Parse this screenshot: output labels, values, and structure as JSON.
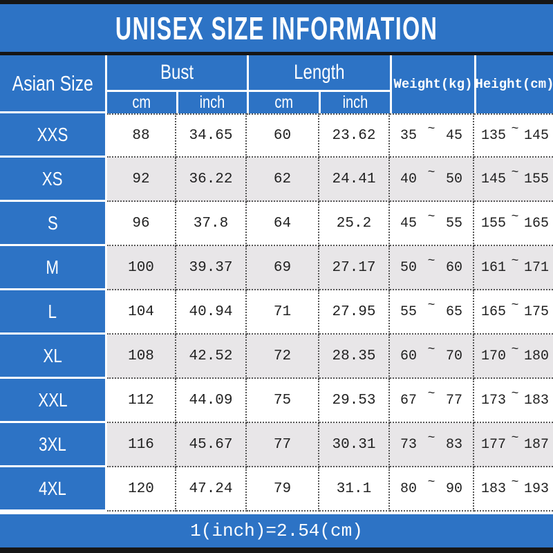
{
  "title": "UNISEX SIZE INFORMATION",
  "footer_note": "1(inch)=2.54(cm)",
  "colors": {
    "accent_blue": "#2D73C5",
    "alt_row_gray": "#E8E6E8",
    "bar_black": "#161616",
    "data_text": "#222222"
  },
  "table": {
    "tilde": "~",
    "header": {
      "size_column": "Asian Size",
      "bust": "Bust",
      "length": "Length",
      "weight": "Weight(kg)",
      "height": "Height(cm)",
      "sub": [
        "cm",
        "inch",
        "cm",
        "inch"
      ]
    },
    "rows": [
      {
        "size": "XXS",
        "bust_cm": "88",
        "bust_in": "34.65",
        "len_cm": "60",
        "len_in": "23.62",
        "w_min": "35",
        "w_max": "45",
        "h_min": "135",
        "h_max": "145"
      },
      {
        "size": "XS",
        "bust_cm": "92",
        "bust_in": "36.22",
        "len_cm": "62",
        "len_in": "24.41",
        "w_min": "40",
        "w_max": "50",
        "h_min": "145",
        "h_max": "155"
      },
      {
        "size": "S",
        "bust_cm": "96",
        "bust_in": "37.8",
        "len_cm": "64",
        "len_in": "25.2",
        "w_min": "45",
        "w_max": "55",
        "h_min": "155",
        "h_max": "165"
      },
      {
        "size": "M",
        "bust_cm": "100",
        "bust_in": "39.37",
        "len_cm": "69",
        "len_in": "27.17",
        "w_min": "50",
        "w_max": "60",
        "h_min": "161",
        "h_max": "171"
      },
      {
        "size": "L",
        "bust_cm": "104",
        "bust_in": "40.94",
        "len_cm": "71",
        "len_in": "27.95",
        "w_min": "55",
        "w_max": "65",
        "h_min": "165",
        "h_max": "175"
      },
      {
        "size": "XL",
        "bust_cm": "108",
        "bust_in": "42.52",
        "len_cm": "72",
        "len_in": "28.35",
        "w_min": "60",
        "w_max": "70",
        "h_min": "170",
        "h_max": "180"
      },
      {
        "size": "XXL",
        "bust_cm": "112",
        "bust_in": "44.09",
        "len_cm": "75",
        "len_in": "29.53",
        "w_min": "67",
        "w_max": "77",
        "h_min": "173",
        "h_max": "183"
      },
      {
        "size": "3XL",
        "bust_cm": "116",
        "bust_in": "45.67",
        "len_cm": "77",
        "len_in": "30.31",
        "w_min": "73",
        "w_max": "83",
        "h_min": "177",
        "h_max": "187"
      },
      {
        "size": "4XL",
        "bust_cm": "120",
        "bust_in": "47.24",
        "len_cm": "79",
        "len_in": "31.1",
        "w_min": "80",
        "w_max": "90",
        "h_min": "183",
        "h_max": "193"
      }
    ]
  },
  "chart_data": {
    "type": "table",
    "title": "UNISEX SIZE INFORMATION",
    "columns": [
      "Asian Size",
      "Bust (cm)",
      "Bust (inch)",
      "Length (cm)",
      "Length (inch)",
      "Weight (kg)",
      "Height (cm)"
    ],
    "rows": [
      [
        "XXS",
        88,
        34.65,
        60,
        23.62,
        "35~45",
        "135~145"
      ],
      [
        "XS",
        92,
        36.22,
        62,
        24.41,
        "40~50",
        "145~155"
      ],
      [
        "S",
        96,
        37.8,
        64,
        25.2,
        "45~55",
        "155~165"
      ],
      [
        "M",
        100,
        39.37,
        69,
        27.17,
        "50~60",
        "161~171"
      ],
      [
        "L",
        104,
        40.94,
        71,
        27.95,
        "55~65",
        "165~175"
      ],
      [
        "XL",
        108,
        42.52,
        72,
        28.35,
        "60~70",
        "170~180"
      ],
      [
        "XXL",
        112,
        44.09,
        75,
        29.53,
        "67~77",
        "173~183"
      ],
      [
        "3XL",
        116,
        45.67,
        77,
        30.31,
        "73~83",
        "177~187"
      ],
      [
        "4XL",
        120,
        47.24,
        79,
        31.1,
        "80~90",
        "183~193"
      ]
    ],
    "footnote": "1(inch)=2.54(cm)"
  }
}
